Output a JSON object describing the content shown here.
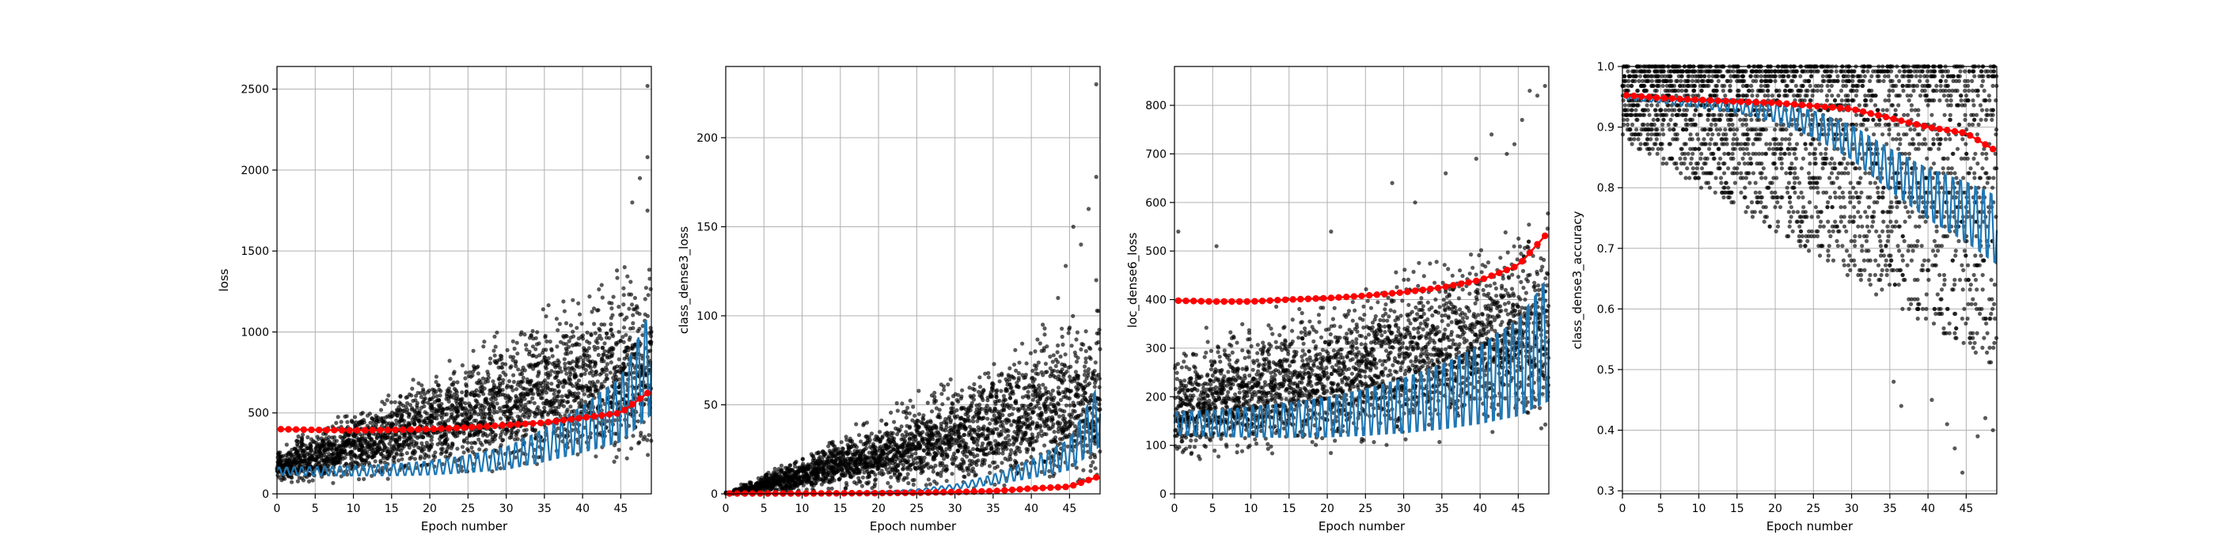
{
  "figure": {
    "background": "#ffffff"
  },
  "colors": {
    "scatter": "#000000",
    "mean": "#1f77b4",
    "avg": "#ff0000",
    "grid": "#b0b0b0"
  },
  "chart_data": [
    {
      "type": "scatter",
      "xlabel": "Epoch number",
      "ylabel": "loss",
      "xlim": [
        0,
        49
      ],
      "ylim": [
        0,
        2640
      ],
      "xticks": [
        0,
        5,
        10,
        15,
        20,
        25,
        30,
        35,
        40,
        45
      ],
      "yticks": [
        0,
        500,
        1000,
        1500,
        2000,
        2500
      ],
      "series": [
        {
          "role": "batch-values",
          "x": [
            0,
            49
          ],
          "y_band_low": [
            40,
            150
          ],
          "y_band_high": [
            330,
            1600
          ]
        },
        {
          "role": "batch-mean",
          "x": [
            0,
            5,
            10,
            15,
            20,
            25,
            30,
            35,
            40,
            45,
            49
          ],
          "y": [
            140,
            140,
            142,
            148,
            160,
            185,
            220,
            300,
            400,
            520,
            820
          ]
        },
        {
          "role": "epoch-average",
          "x": [
            0,
            5,
            10,
            15,
            20,
            25,
            30,
            35,
            40,
            45,
            49
          ],
          "y": [
            400,
            395,
            392,
            395,
            400,
            410,
            425,
            440,
            470,
            500,
            640
          ]
        }
      ],
      "outliers": [
        [
          48,
          2520
        ],
        [
          48,
          2080
        ],
        [
          47,
          1950
        ],
        [
          46,
          1800
        ],
        [
          45,
          1400
        ],
        [
          44,
          1380
        ],
        [
          42,
          1290
        ],
        [
          43,
          1180
        ],
        [
          48,
          1750
        ],
        [
          41,
          1050
        ],
        [
          39,
          960
        ]
      ]
    },
    {
      "type": "scatter",
      "xlabel": "Epoch number",
      "ylabel": "class_dense3_loss",
      "xlim": [
        0,
        49
      ],
      "ylim": [
        0,
        240
      ],
      "xticks": [
        0,
        5,
        10,
        15,
        20,
        25,
        30,
        35,
        40,
        45
      ],
      "yticks": [
        0,
        50,
        100,
        150,
        200
      ],
      "series": [
        {
          "role": "batch-values",
          "x": [
            0,
            49
          ],
          "y_band_low": [
            0,
            0
          ],
          "y_band_high": [
            1,
            120
          ]
        },
        {
          "role": "batch-mean",
          "x": [
            0,
            5,
            10,
            15,
            20,
            25,
            30,
            35,
            40,
            45,
            49
          ],
          "y": [
            0.3,
            0.3,
            0.4,
            0.5,
            1,
            2,
            4,
            8,
            14,
            22,
            45
          ]
        },
        {
          "role": "epoch-average",
          "x": [
            0,
            5,
            10,
            15,
            20,
            25,
            30,
            35,
            40,
            45,
            49
          ],
          "y": [
            0.2,
            0.2,
            0.2,
            0.3,
            0.4,
            0.6,
            1,
            1.5,
            3,
            4,
            10
          ]
        }
      ],
      "outliers": [
        [
          48,
          230
        ],
        [
          48,
          178
        ],
        [
          45,
          150
        ],
        [
          47,
          160
        ],
        [
          44,
          128
        ],
        [
          46,
          140
        ],
        [
          43,
          110
        ],
        [
          41,
          95
        ],
        [
          40,
          80
        ],
        [
          48,
          120
        ]
      ]
    },
    {
      "type": "scatter",
      "xlabel": "Epoch number",
      "ylabel": "loc_dense6_loss",
      "xlim": [
        0,
        49
      ],
      "ylim": [
        0,
        880
      ],
      "xticks": [
        0,
        5,
        10,
        15,
        20,
        25,
        30,
        35,
        40,
        45
      ],
      "yticks": [
        0,
        100,
        200,
        300,
        400,
        500,
        600,
        700,
        800
      ],
      "series": [
        {
          "role": "batch-values",
          "x": [
            0,
            49
          ],
          "y_band_low": [
            50,
            120
          ],
          "y_band_high": [
            330,
            620
          ]
        },
        {
          "role": "batch-mean",
          "x": [
            0,
            5,
            10,
            15,
            20,
            25,
            30,
            35,
            40,
            45,
            49
          ],
          "y": [
            145,
            145,
            148,
            152,
            158,
            168,
            182,
            200,
            225,
            260,
            320
          ]
        },
        {
          "role": "epoch-average",
          "x": [
            0,
            5,
            10,
            15,
            20,
            25,
            30,
            35,
            40,
            45,
            49
          ],
          "y": [
            398,
            396,
            396,
            400,
            403,
            408,
            415,
            425,
            440,
            470,
            540
          ]
        }
      ],
      "outliers": [
        [
          48,
          840
        ],
        [
          47,
          820
        ],
        [
          46,
          830
        ],
        [
          45,
          770
        ],
        [
          44,
          720
        ],
        [
          43,
          700
        ],
        [
          41,
          740
        ],
        [
          39,
          690
        ],
        [
          35,
          660
        ],
        [
          31,
          600
        ],
        [
          28,
          640
        ],
        [
          0,
          540
        ],
        [
          5,
          510
        ],
        [
          20,
          540
        ]
      ]
    },
    {
      "type": "scatter",
      "xlabel": "Epoch number",
      "ylabel": "class_dense3_accuracy",
      "xlim": [
        0,
        49
      ],
      "ylim": [
        0.295,
        1.0
      ],
      "xticks": [
        0,
        5,
        10,
        15,
        20,
        25,
        30,
        35,
        40,
        45
      ],
      "yticks": [
        0.3,
        0.4,
        0.5,
        0.6,
        0.7,
        0.8,
        0.9,
        1.0
      ],
      "series": [
        {
          "role": "batch-values",
          "x": [
            0,
            49
          ],
          "y_band_low": [
            0.88,
            0.5
          ],
          "y_band_high": [
            1.0,
            1.0
          ]
        },
        {
          "role": "batch-mean",
          "x": [
            0,
            5,
            10,
            15,
            20,
            25,
            30,
            35,
            40,
            45,
            49
          ],
          "y": [
            0.95,
            0.945,
            0.94,
            0.935,
            0.925,
            0.905,
            0.875,
            0.83,
            0.79,
            0.76,
            0.73
          ]
        },
        {
          "role": "epoch-average",
          "x": [
            0,
            5,
            10,
            15,
            20,
            25,
            30,
            35,
            40,
            45,
            49
          ],
          "y": [
            0.953,
            0.948,
            0.945,
            0.942,
            0.94,
            0.935,
            0.93,
            0.915,
            0.9,
            0.89,
            0.86
          ]
        }
      ],
      "outliers": [
        [
          44,
          0.33
        ],
        [
          43,
          0.37
        ],
        [
          42,
          0.41
        ],
        [
          46,
          0.39
        ],
        [
          48,
          0.4
        ],
        [
          36,
          0.44
        ],
        [
          40,
          0.45
        ],
        [
          35,
          0.48
        ],
        [
          47,
          0.42
        ]
      ]
    }
  ]
}
